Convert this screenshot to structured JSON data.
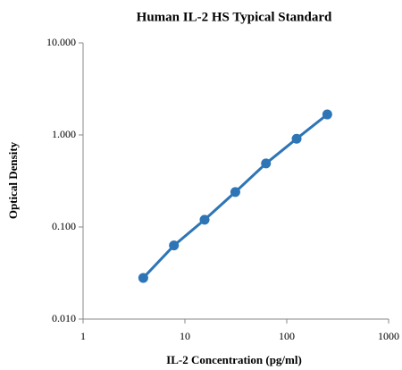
{
  "chart_data": {
    "type": "line",
    "title": "Human IL-2 HS Typical Standard",
    "x_label": "IL-2 Concentration (pg/ml)",
    "y_label": "Optical Density",
    "x": [
      3.9,
      7.8,
      15.6,
      31.25,
      62.5,
      125,
      250
    ],
    "series": [
      {
        "name": "Standard",
        "color": "#2e75b6",
        "values": [
          0.028,
          0.063,
          0.12,
          0.24,
          0.49,
          0.91,
          1.67
        ]
      }
    ],
    "xlim": [
      1,
      1000
    ],
    "xticks": [
      1,
      10,
      100,
      1000
    ],
    "ylim": [
      0.01,
      10
    ],
    "yticks": [
      {
        "value": 0.01,
        "label": "0.010"
      },
      {
        "value": 0.1,
        "label": "0.100"
      },
      {
        "value": 1,
        "label": "1.000"
      },
      {
        "value": 10,
        "label": "10.000"
      }
    ],
    "xlog": true,
    "ylog": true,
    "grid": false,
    "legend": false
  }
}
